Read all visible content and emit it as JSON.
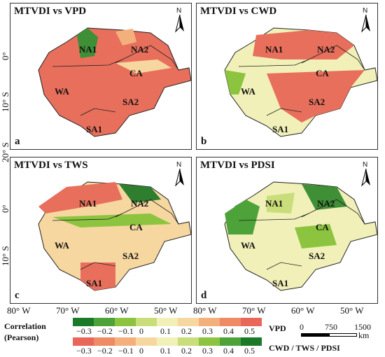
{
  "panels": [
    {
      "title": "MTVDI vs VPD",
      "letter": "a"
    },
    {
      "title": "MTVDI vs CWD",
      "letter": "b"
    },
    {
      "title": "MTVDI vs TWS",
      "letter": "c"
    },
    {
      "title": "MTVDI vs PDSI",
      "letter": "d"
    }
  ],
  "regions": [
    "NA1",
    "NA2",
    "CA",
    "WA",
    "SA2",
    "SA1"
  ],
  "north_label": "N",
  "y_axis_labels": [
    "0°",
    "10° S",
    "20° S",
    "0°",
    "10° S"
  ],
  "x_axis_labels": [
    "80° W",
    "70° W",
    "60° W",
    "50° W",
    "80° W",
    "70° W",
    "60° W",
    "50° W"
  ],
  "legend": {
    "title_line1": "Correlation",
    "title_line2": "(Pearson)",
    "row1_label": "VPD",
    "row2_label": "CWD / TWS / PDSI",
    "row1_ticks": [
      "−0.3",
      "−0.2",
      "−0.1",
      "0",
      "0.1",
      "0.2",
      "0.3",
      "0.4",
      "0.5"
    ],
    "row2_ticks": [
      "−0.3",
      "−0.2",
      "−0.1",
      "0",
      "0.1",
      "0.2",
      "0.3",
      "0.4",
      "0.5"
    ],
    "row1_colors": [
      "#1b7a2a",
      "#4da33a",
      "#8cc43f",
      "#c9de7a",
      "#f1f0b8",
      "#f7d7a0",
      "#f3b07c",
      "#ee8a66",
      "#e8675a"
    ],
    "row2_colors": [
      "#e8675a",
      "#ee8a66",
      "#f3b07c",
      "#f7d7a0",
      "#f1f0b8",
      "#c9de7a",
      "#8cc43f",
      "#4da33a",
      "#1b7a2a"
    ]
  },
  "scale_bar": {
    "ticks": [
      "0",
      "750",
      "1500"
    ],
    "unit": "km"
  }
}
